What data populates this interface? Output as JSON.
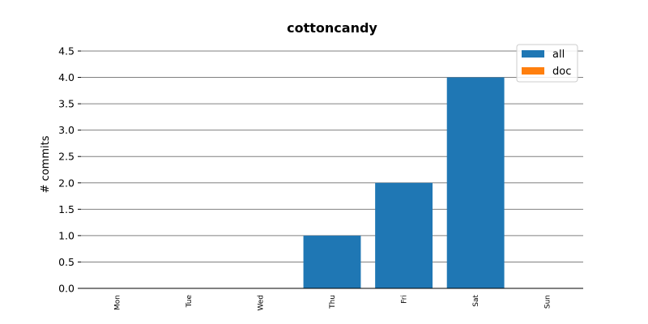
{
  "chart_data": {
    "type": "bar",
    "title": "cottoncandy",
    "xlabel": "",
    "ylabel": "# commits",
    "categories": [
      "Mon",
      "Tue",
      "Wed",
      "Thu",
      "Fri",
      "Sat",
      "Sun"
    ],
    "series": [
      {
        "name": "all",
        "values": [
          0,
          0,
          0,
          1,
          2,
          4,
          0
        ],
        "color": "#1f77b4"
      },
      {
        "name": "doc",
        "values": [
          0,
          0,
          0,
          0,
          0,
          0,
          0
        ],
        "color": "#ff7f0e"
      }
    ],
    "ylim": [
      0,
      4.5
    ],
    "yticks": [
      "0.0",
      "0.5",
      "1.0",
      "1.5",
      "2.0",
      "2.5",
      "3.0",
      "3.5",
      "4.0",
      "4.5"
    ],
    "grid": true,
    "legend_position": "top-right"
  }
}
